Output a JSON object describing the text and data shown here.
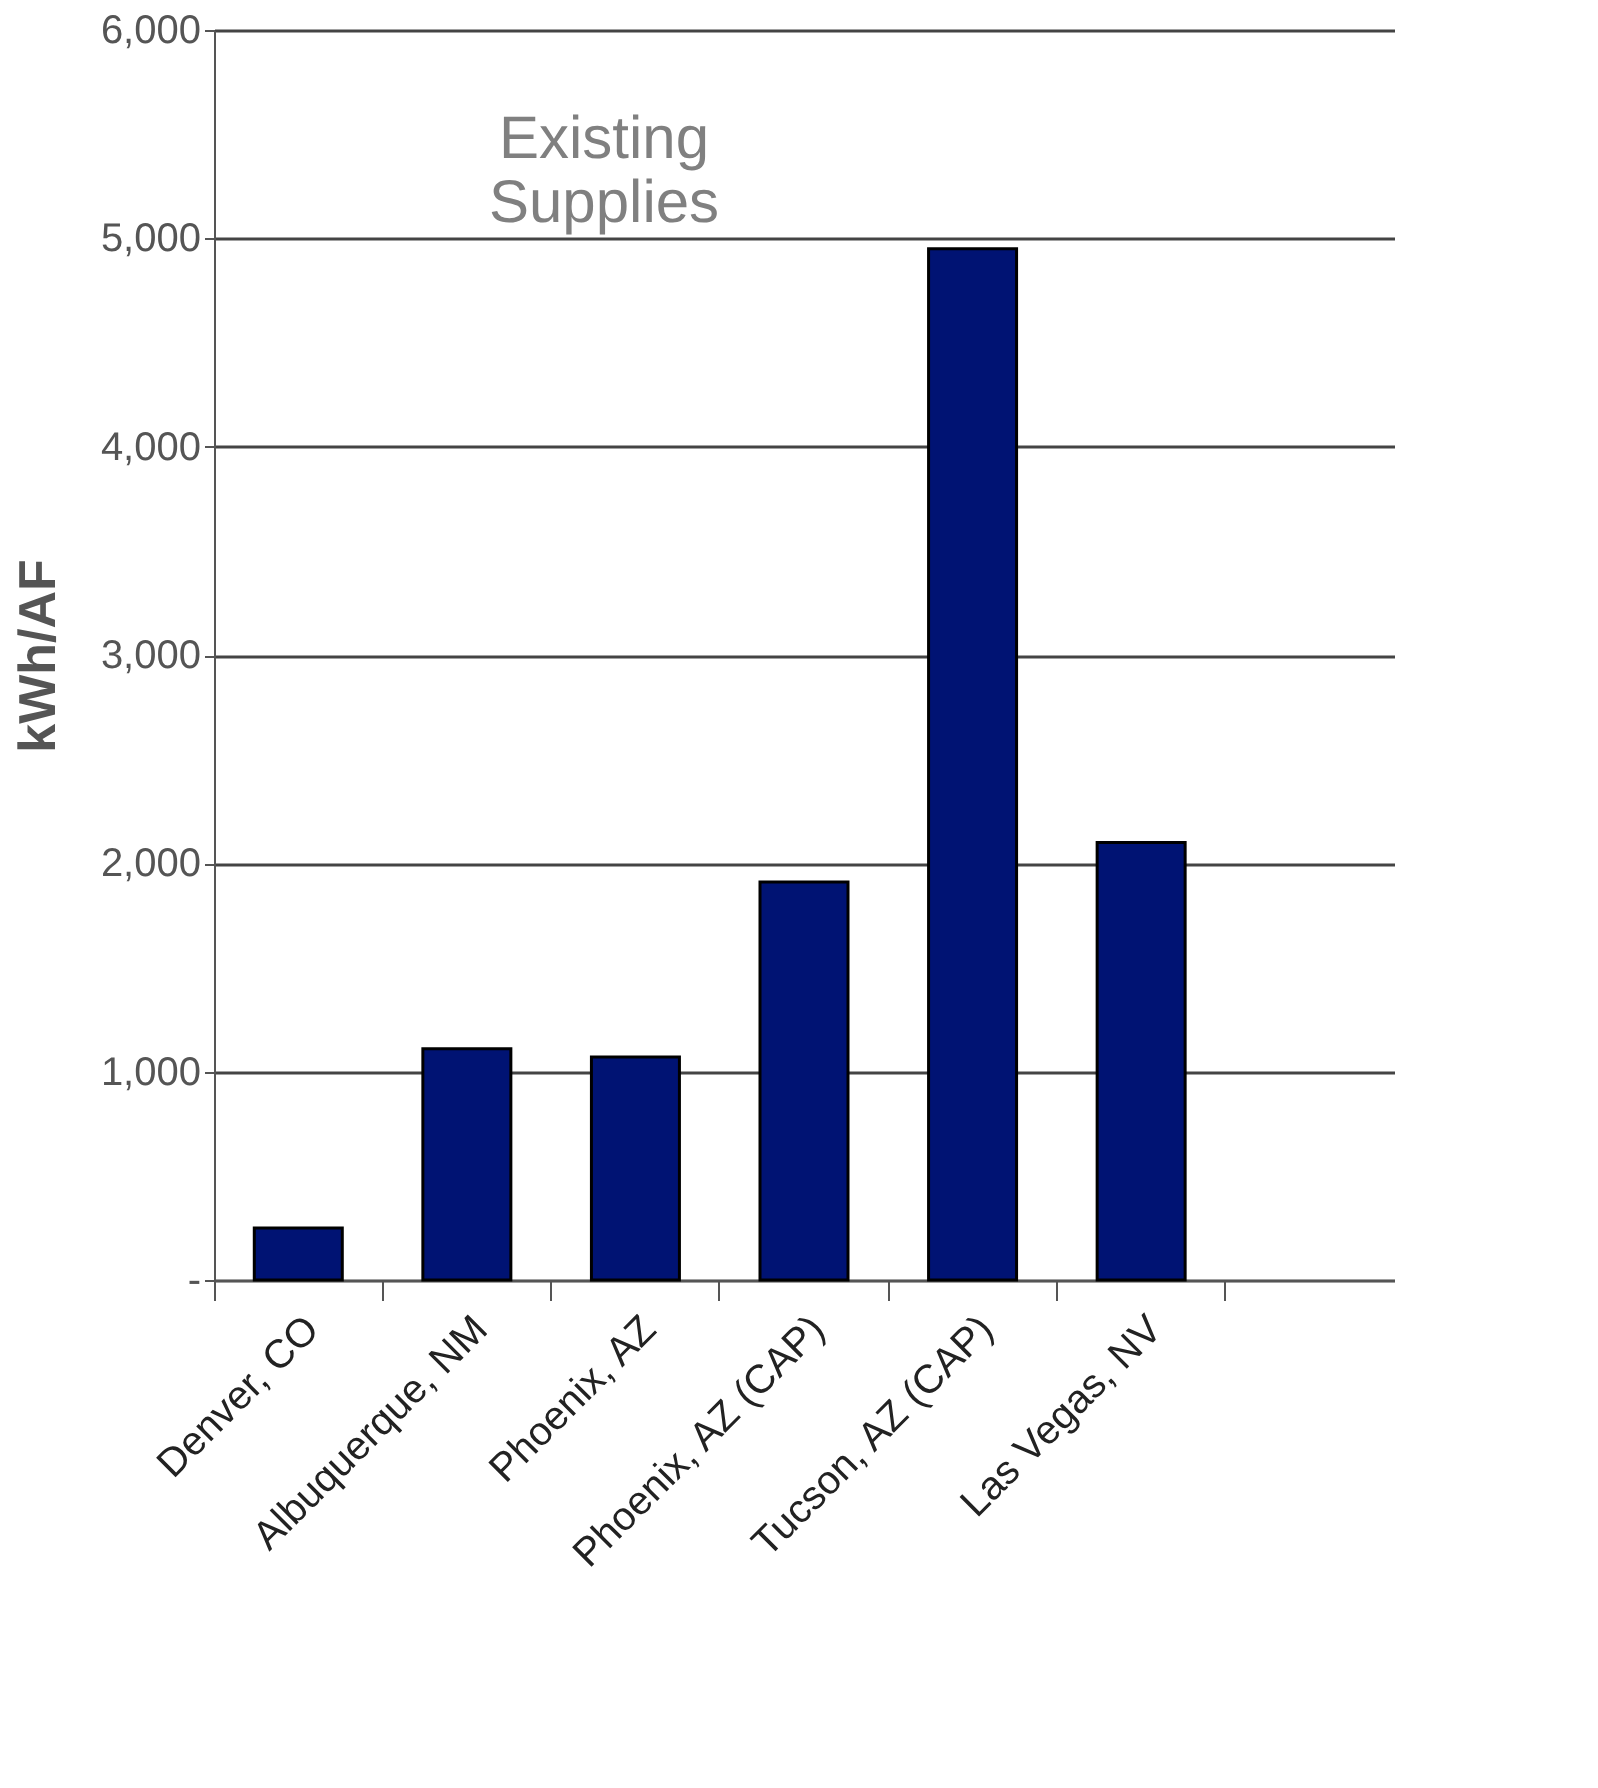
{
  "chart_data": {
    "type": "bar",
    "ylabel": "kWh/AF",
    "categories": [
      "Denver, CO",
      "Albuquerque, NM",
      "Phoenix, AZ",
      "Phoenix, AZ (CAP)",
      "Tucson, AZ (CAP)",
      "Las Vegas, NV"
    ],
    "values": [
      250,
      1110,
      1070,
      1910,
      4950,
      2100
    ],
    "color": "#001373",
    "ylim": [
      0,
      6000
    ],
    "yticks": [
      {
        "value": 0,
        "label": "-"
      },
      {
        "value": 1000,
        "label": "1,000"
      },
      {
        "value": 2000,
        "label": "2,000"
      },
      {
        "value": 3000,
        "label": "3,000"
      },
      {
        "value": 4000,
        "label": "4,000"
      },
      {
        "value": 5000,
        "label": "5,000"
      },
      {
        "value": 6000,
        "label": "6,000"
      }
    ],
    "grid": "y",
    "annotations": [
      "Existing Supplies"
    ]
  }
}
